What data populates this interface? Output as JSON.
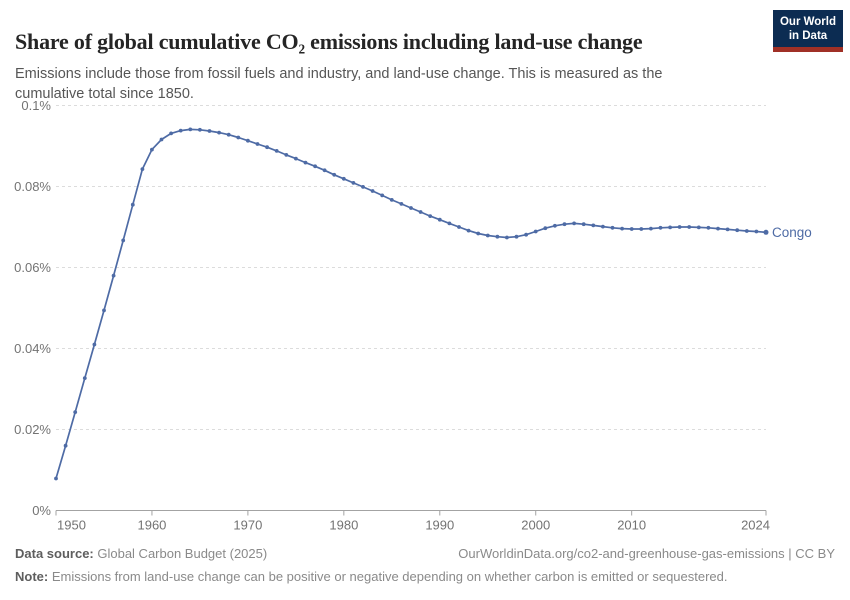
{
  "header": {
    "title": "Share of global cumulative CO₂ emissions including land-use change",
    "subtitle": "Emissions include those from fossil fuels and industry, and land-use change. This is measured as the cumulative total since 1850.",
    "logo": {
      "line1": "Our World",
      "line2": "in Data"
    }
  },
  "chart_data": {
    "type": "line",
    "title": "Share of global cumulative CO₂ emissions including land-use change",
    "unit": "%",
    "xlim": [
      1950,
      2024
    ],
    "ylim": [
      0,
      0.1
    ],
    "grid": "horizontal-dashed",
    "legend_position": "end-of-line-label",
    "xticks": [
      {
        "value": 1950,
        "label": "1950"
      },
      {
        "value": 1960,
        "label": "1960"
      },
      {
        "value": 1970,
        "label": "1970"
      },
      {
        "value": 1980,
        "label": "1980"
      },
      {
        "value": 1990,
        "label": "1990"
      },
      {
        "value": 2000,
        "label": "2000"
      },
      {
        "value": 2010,
        "label": "2010"
      },
      {
        "value": 2024,
        "label": "2024"
      }
    ],
    "yticks": [
      {
        "value": 0,
        "label": "0%"
      },
      {
        "value": 0.02,
        "label": "0.02%"
      },
      {
        "value": 0.04,
        "label": "0.04%"
      },
      {
        "value": 0.06,
        "label": "0.06%"
      },
      {
        "value": 0.08,
        "label": "0.08%"
      },
      {
        "value": 0.1,
        "label": "0.1%"
      }
    ],
    "x": [
      1950,
      1951,
      1952,
      1953,
      1954,
      1955,
      1956,
      1957,
      1958,
      1959,
      1960,
      1961,
      1962,
      1963,
      1964,
      1965,
      1966,
      1967,
      1968,
      1969,
      1970,
      1971,
      1972,
      1973,
      1974,
      1975,
      1976,
      1977,
      1978,
      1979,
      1980,
      1981,
      1982,
      1983,
      1984,
      1985,
      1986,
      1987,
      1988,
      1989,
      1990,
      1991,
      1992,
      1993,
      1994,
      1995,
      1996,
      1997,
      1998,
      1999,
      2000,
      2001,
      2002,
      2003,
      2004,
      2005,
      2006,
      2007,
      2008,
      2009,
      2010,
      2011,
      2012,
      2013,
      2014,
      2015,
      2016,
      2017,
      2018,
      2019,
      2020,
      2021,
      2022,
      2023,
      2024
    ],
    "series": [
      {
        "name": "Congo",
        "color": "#4e6ba5",
        "values": [
          0.0079,
          0.016,
          0.0243,
          0.0327,
          0.041,
          0.0494,
          0.058,
          0.0667,
          0.0755,
          0.0843,
          0.0891,
          0.0916,
          0.0931,
          0.0938,
          0.0941,
          0.094,
          0.0937,
          0.0933,
          0.0928,
          0.0921,
          0.0913,
          0.0905,
          0.0897,
          0.0888,
          0.0878,
          0.0869,
          0.0859,
          0.085,
          0.084,
          0.0829,
          0.0819,
          0.0809,
          0.0799,
          0.0789,
          0.0778,
          0.0767,
          0.0757,
          0.0747,
          0.0737,
          0.0727,
          0.0718,
          0.0709,
          0.07,
          0.0691,
          0.0684,
          0.0679,
          0.0676,
          0.0674,
          0.0676,
          0.0681,
          0.0689,
          0.0697,
          0.0703,
          0.0707,
          0.0709,
          0.0707,
          0.0704,
          0.0701,
          0.0698,
          0.0696,
          0.0695,
          0.0695,
          0.0696,
          0.0698,
          0.0699,
          0.07,
          0.07,
          0.0699,
          0.0698,
          0.0696,
          0.0694,
          0.0692,
          0.069,
          0.0689,
          0.0687
        ]
      }
    ]
  },
  "colors": {
    "series_blue": "#4e6ba5",
    "logo_navy": "#0c2c52",
    "logo_red": "#a03026",
    "gridline": "#dcdcdc",
    "axis": "#a3a3a3",
    "tick_label": "#737373"
  },
  "footer": {
    "source_label": "Data source:",
    "source_value": " Global Carbon Budget (2025)",
    "link": "OurWorldinData.org/co2-and-greenhouse-gas-emissions | CC BY",
    "note_label": "Note:",
    "note_value": " Emissions from land-use change can be positive or negative depending on whether carbon is emitted or sequestered."
  }
}
